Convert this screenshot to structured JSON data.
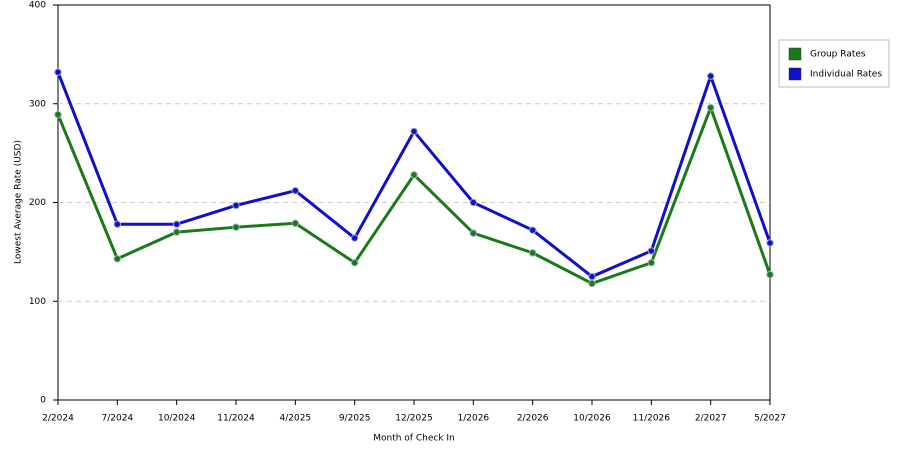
{
  "chart_data": {
    "type": "line",
    "x_label": "Month of Check In",
    "y_label": "Lowest Average Rate (USD)",
    "categories": [
      "2/2024",
      "7/2024",
      "10/2024",
      "11/2024",
      "4/2025",
      "9/2025",
      "12/2025",
      "1/2026",
      "2/2026",
      "10/2026",
      "11/2026",
      "2/2027",
      "5/2027"
    ],
    "series": [
      {
        "name": "Group Rates",
        "color": "#1a7a1a",
        "values": [
          289,
          143,
          170,
          175,
          179,
          139,
          228,
          169,
          149,
          118,
          139,
          296,
          127
        ]
      },
      {
        "name": "Individual Rates",
        "color": "#1010cc",
        "values": [
          332,
          178,
          178,
          197,
          212,
          164,
          272,
          200,
          172,
          125,
          151,
          328,
          159
        ]
      }
    ],
    "ylim": [
      0,
      400
    ],
    "yticks": [
      0,
      100,
      200,
      300,
      400
    ],
    "grid": true,
    "legend": "right"
  }
}
